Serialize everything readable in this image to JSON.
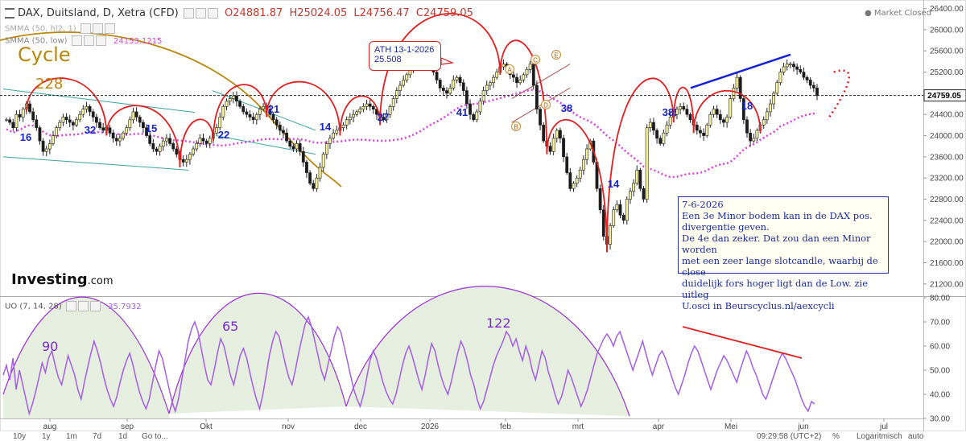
{
  "header": {
    "title": "DAX, Duitsland, D, Xetra (CFD)",
    "open": "O24881.87",
    "high": "H25024.05",
    "low": "L24756.47",
    "close": "C24759.05",
    "market_status": "Market Closed",
    "indicator1": "SMMA (50, hl2, 1)",
    "indicator2": "SMMA (50, low)",
    "indicator2_value": "24153.1215",
    "cycle_label": "Cycle",
    "cycle_number": "228"
  },
  "logo": {
    "brand": "Investing",
    "suffix": ".com"
  },
  "annotation_box": {
    "ath_text": "ATH 13-1-2026\n25.508",
    "note_text": "7-6-2026\nEen 3e Minor bodem kan in de DAX pos.\ndivergentie geven.\nDe 4e dan zeker. Dat zou dan een  Minor worden\nmet een zeer lange slotcandle, waarbij de close\nduidelijk fors hoger ligt dan de Low.  zie  uitleg\nU.osci  in  Beurscyclus.nl/aexcycli"
  },
  "oscillator": {
    "title": "UO (7, 14, 28)",
    "value": "35.7932",
    "cycle_labels": [
      "90",
      "65",
      "122"
    ]
  },
  "bottom_bar": {
    "ranges": [
      "10y",
      "1y",
      "1m",
      "7d",
      "1d",
      "Go to..."
    ],
    "time": "09:29:58 (UTC+2)",
    "percent": "%",
    "log": "Logaritmisch",
    "auto": "auto"
  },
  "colors": {
    "up": "#f7f39a",
    "down": "#1b1b1b",
    "cycle_arc": "#e02020",
    "smma": "#e040e0",
    "big_cycle": "#b8860b",
    "label_blue": "#1525c8",
    "uo_line": "#a35ee8",
    "uo_fill": "#e6efe0"
  },
  "chart_data": [
    {
      "type": "candlestick",
      "series_name": "DAX, Duitsland, D, Xetra (CFD)",
      "x_ticks": [
        "aug",
        "sep",
        "Okt",
        "nov",
        "dec",
        "2026",
        "feb",
        "mrt",
        "apr",
        "Mei",
        "jun",
        "jul"
      ],
      "y_ticks": [
        21200,
        21600,
        22000,
        22400,
        22800,
        23200,
        23600,
        24000,
        24400,
        24800,
        25200,
        25600,
        26000,
        26400
      ],
      "ylim": [
        21000,
        26500
      ],
      "last_price": 24759.05,
      "closes": [
        24300,
        24250,
        24150,
        24400,
        24350,
        24500,
        24600,
        24450,
        24300,
        24150,
        23900,
        23700,
        23750,
        23850,
        24000,
        24150,
        24250,
        24350,
        24300,
        24250,
        24200,
        24300,
        24400,
        24500,
        24550,
        24450,
        24350,
        24250,
        24150,
        24100,
        24150,
        24050,
        23950,
        23900,
        23950,
        24050,
        24150,
        24300,
        24450,
        24350,
        24250,
        24150,
        24000,
        23850,
        23750,
        23700,
        23800,
        23900,
        23950,
        23850,
        23750,
        23650,
        23550,
        23500,
        23550,
        23650,
        23750,
        23850,
        23950,
        23900,
        23850,
        23950,
        24050,
        24150,
        24350,
        24550,
        24650,
        24700,
        24750,
        24650,
        24550,
        24450,
        24400,
        24350,
        24300,
        24400,
        24500,
        24550,
        24500,
        24400,
        24300,
        24200,
        24100,
        24050,
        23900,
        23800,
        23750,
        23850,
        23700,
        23500,
        23300,
        23100,
        23000,
        23200,
        23400,
        23650,
        23850,
        23950,
        24050,
        24100,
        24150,
        24200,
        24300,
        24350,
        24400,
        24450,
        24500,
        24550,
        24600,
        24550,
        24500,
        24400,
        24350,
        24300,
        24400,
        24550,
        24700,
        24850,
        24950,
        25050,
        25150,
        25250,
        25350,
        25400,
        25450,
        25450,
        25400,
        25300,
        25200,
        25050,
        24900,
        24850,
        24800,
        24900,
        25050,
        25100,
        25000,
        24850,
        24600,
        24400,
        24300,
        24450,
        24650,
        24850,
        24950,
        25000,
        25100,
        25200,
        25300,
        25350,
        25250,
        25150,
        25100,
        25000,
        25050,
        25150,
        25250,
        25350,
        24950,
        24500,
        24200,
        23900,
        23800,
        23700,
        23950,
        24100,
        23950,
        23600,
        23300,
        23000,
        23100,
        23200,
        23350,
        23550,
        23750,
        23900,
        23500,
        23000,
        22600,
        22100,
        21950,
        22300,
        22600,
        22700,
        22500,
        22400,
        22800,
        22950,
        23100,
        23350,
        23000,
        22800,
        24150,
        24250,
        24100,
        23950,
        23850,
        24050,
        24200,
        24350,
        24400,
        24500,
        24550,
        24500,
        24400,
        24300,
        24200,
        24100,
        24050,
        24000,
        24200,
        24400,
        24500,
        24400,
        24300,
        24250,
        24350,
        24700,
        24900,
        25100,
        24700,
        24300,
        24050,
        23900,
        23950,
        24100,
        24200,
        24300,
        24450,
        24600,
        24800,
        25000,
        25200,
        25300,
        25350,
        25350,
        25300,
        25250,
        25200,
        25100,
        25050,
        24950,
        24900,
        24759
      ]
    },
    {
      "type": "line",
      "series_name": "UO (7, 14, 28)",
      "y_ticks": [
        30,
        40,
        50,
        60,
        70,
        80
      ],
      "ylim": [
        30,
        80
      ],
      "last_value": 35.7932,
      "values": [
        48,
        52,
        46,
        55,
        42,
        50,
        44,
        38,
        32,
        36,
        41,
        47,
        53,
        49,
        55,
        58,
        52,
        47,
        44,
        50,
        56,
        52,
        48,
        42,
        38,
        45,
        51,
        57,
        62,
        58,
        53,
        47,
        42,
        38,
        35,
        39,
        45,
        50,
        54,
        57,
        52,
        46,
        41,
        37,
        34,
        38,
        45,
        52,
        58,
        55,
        49,
        43,
        37,
        33,
        38,
        46,
        54,
        62,
        67,
        70,
        66,
        59,
        52,
        46,
        44,
        50,
        57,
        63,
        60,
        54,
        48,
        44,
        50,
        56,
        59,
        55,
        49,
        43,
        38,
        34,
        40,
        48,
        56,
        62,
        66,
        64,
        58,
        52,
        47,
        44,
        50,
        57,
        63,
        69,
        72,
        68,
        62,
        56,
        50,
        46,
        52,
        58,
        64,
        68,
        66,
        60,
        54,
        48,
        42,
        38,
        35,
        40,
        47,
        54,
        58,
        55,
        50,
        45,
        41,
        38,
        36,
        40,
        46,
        52,
        57,
        60,
        56,
        51,
        46,
        42,
        48,
        55,
        61,
        58,
        52,
        47,
        43,
        40,
        45,
        51,
        57,
        62,
        59,
        54,
        48,
        44,
        38,
        34,
        37,
        42,
        47,
        52,
        56,
        59,
        62,
        66,
        64,
        60,
        63,
        58,
        54,
        60,
        56,
        50,
        46,
        52,
        58,
        55,
        49,
        45,
        40,
        36,
        39,
        44,
        50,
        47,
        43,
        39,
        35,
        38,
        42,
        47,
        52,
        57,
        60,
        63,
        65,
        63,
        60,
        64,
        66,
        62,
        58,
        54,
        50,
        54,
        58,
        62,
        57,
        52,
        48,
        52,
        56,
        58,
        55,
        51,
        47,
        43,
        40,
        44,
        48,
        53,
        57,
        60,
        58,
        54,
        50,
        46,
        42,
        46,
        50,
        53,
        56,
        54,
        51,
        48,
        45,
        50,
        54,
        58,
        55,
        51,
        48,
        44,
        40,
        38,
        42,
        46,
        50,
        54,
        57,
        55,
        52,
        49,
        46,
        42,
        38,
        35,
        33,
        37,
        36
      ]
    }
  ]
}
